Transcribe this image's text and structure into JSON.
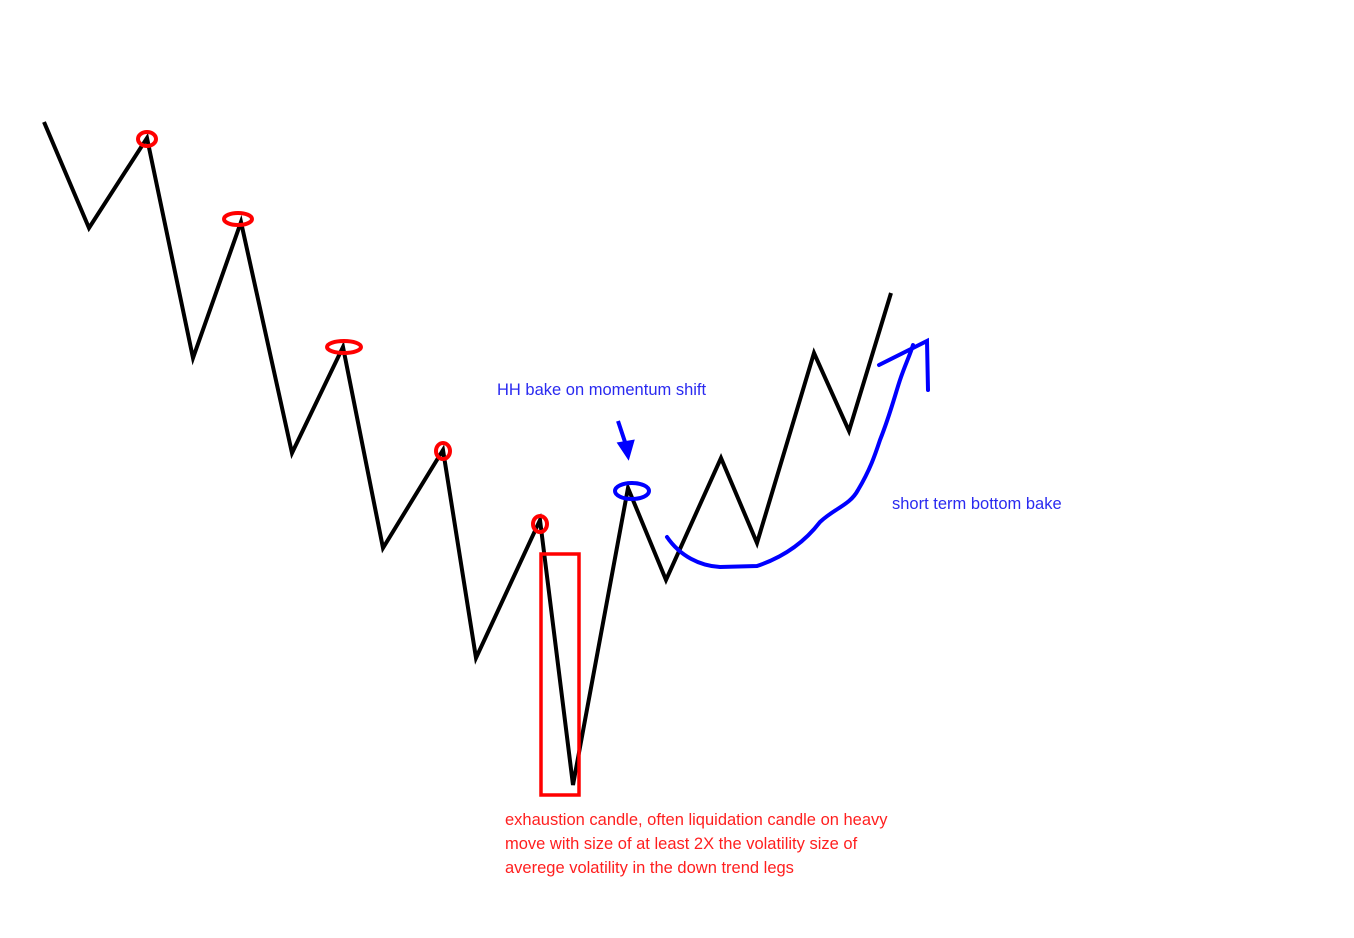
{
  "annotations": {
    "hh_label": "HH bake on momentum shift",
    "bottom_label": "short term bottom bake",
    "exhaustion_lines": [
      "exhaustion candle, often liquidation candle on heavy",
      "move with size of at least 2X the volatility size of",
      "averege volatility in the down trend legs"
    ]
  },
  "colors": {
    "price_line": "#000000",
    "lower_highs_markers": "#ff0000",
    "exhaustion_box": "#ff0000",
    "momentum_annotations": "#0000ff"
  }
}
